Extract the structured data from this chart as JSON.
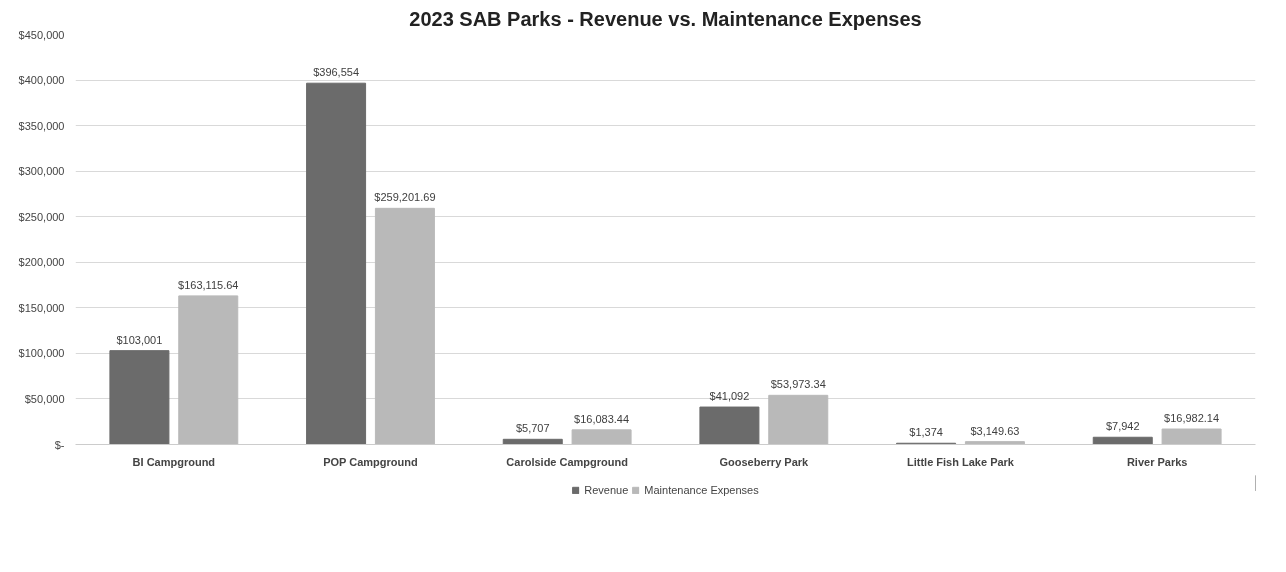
{
  "chart_data": {
    "type": "bar",
    "title": "2023 SAB Parks - Revenue vs. Maintenance Expenses",
    "categories": [
      "BI Campground",
      "POP Campground",
      "Carolside Campground",
      "Gooseberry Park",
      "Little Fish Lake Park",
      "River Parks"
    ],
    "series": [
      {
        "name": "Revenue",
        "color": "#6b6b6b",
        "values": [
          103001,
          396554,
          5707,
          41092,
          1374,
          7942
        ],
        "value_labels": [
          "$103,001",
          "$396,554",
          "$5,707",
          "$41,092",
          "$1,374",
          "$7,942"
        ]
      },
      {
        "name": "Maintenance Expenses",
        "color": "#b9b9b9",
        "values": [
          163115.64,
          259201.69,
          16083.44,
          53973.34,
          3149.63,
          16982.14
        ],
        "value_labels": [
          "$163,115.64",
          "$259,201.69",
          "$16,083.44",
          "$53,973.34",
          "$3,149.63",
          "$16,982.14"
        ]
      }
    ],
    "ylim": [
      0,
      450000
    ],
    "yticks": [
      {
        "value": 0,
        "label": "$-"
      },
      {
        "value": 50000,
        "label": "$50,000"
      },
      {
        "value": 100000,
        "label": "$100,000"
      },
      {
        "value": 150000,
        "label": "$150,000"
      },
      {
        "value": 200000,
        "label": "$200,000"
      },
      {
        "value": 250000,
        "label": "$250,000"
      },
      {
        "value": 300000,
        "label": "$300,000"
      },
      {
        "value": 350000,
        "label": "$350,000"
      },
      {
        "value": 400000,
        "label": "$400,000"
      },
      {
        "value": 450000,
        "label": "$450,000"
      }
    ],
    "grid": "y",
    "legend": "bottom"
  }
}
